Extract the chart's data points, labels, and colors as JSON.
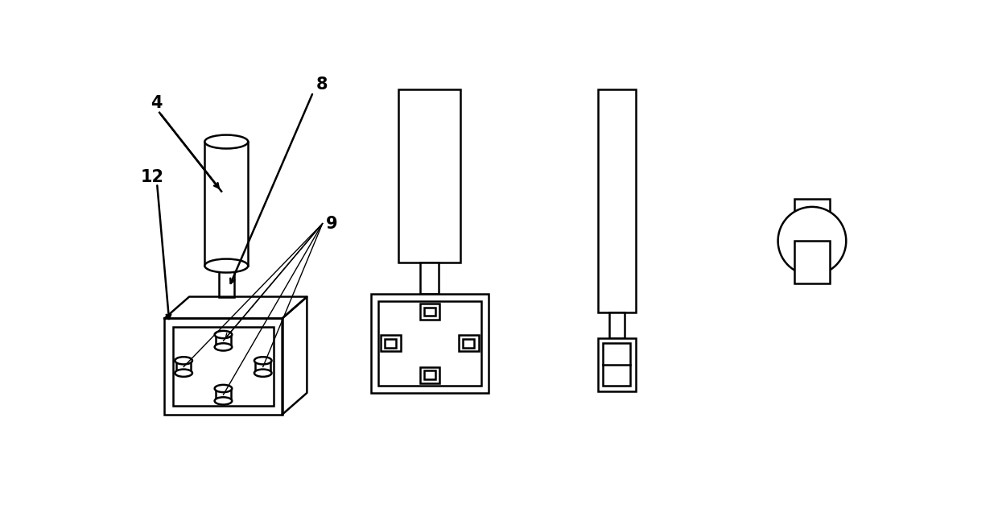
{
  "bg_color": "#ffffff",
  "line_color": "#000000",
  "line_width": 1.8,
  "fig_width": 12.4,
  "fig_height": 6.52
}
